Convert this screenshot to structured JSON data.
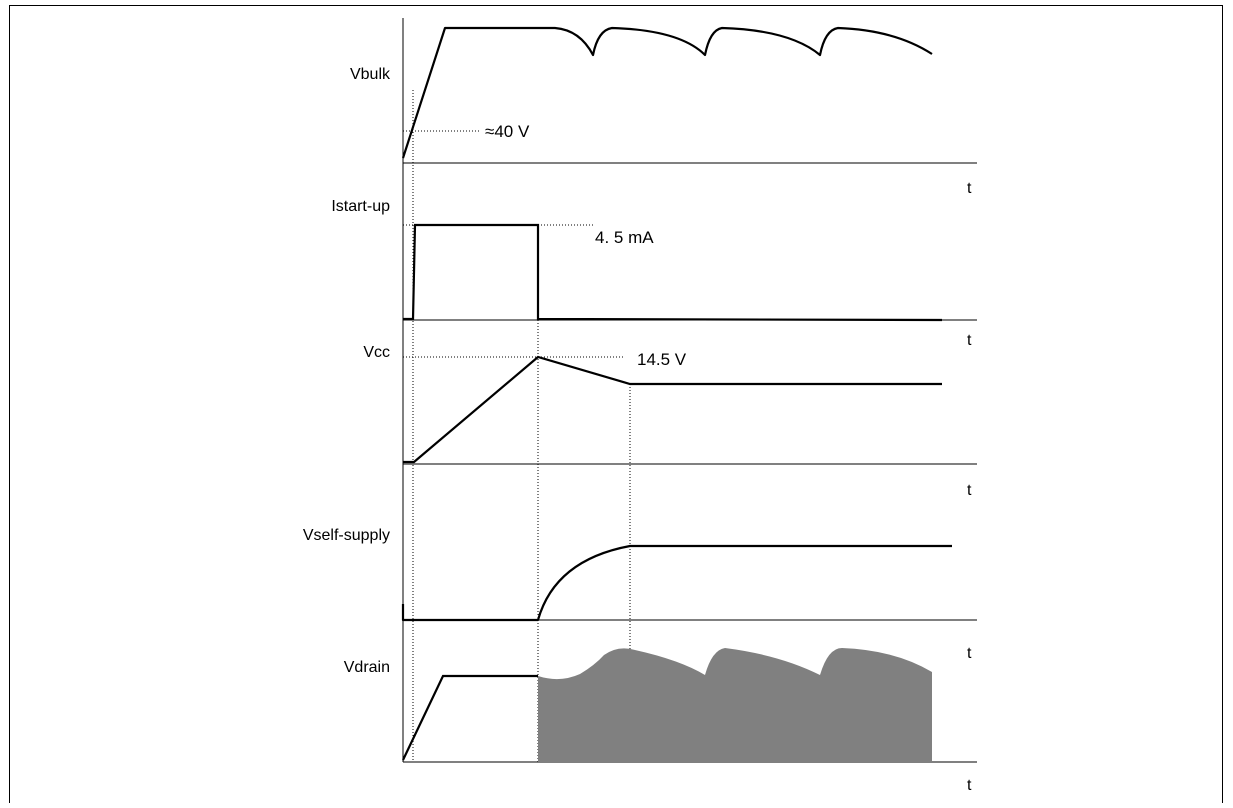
{
  "colors": {
    "line": "#000000",
    "fill_region": "#808080",
    "background": "#ffffff"
  },
  "traces": [
    {
      "id": "vbulk",
      "label": "Vbulk",
      "axis_label": "t",
      "annotation": "≈40 V"
    },
    {
      "id": "istartup",
      "label": "Istart-up",
      "axis_label": "t",
      "annotation": "4. 5 mA"
    },
    {
      "id": "vcc",
      "label": "Vcc",
      "axis_label": "t",
      "annotation": "14.5 V"
    },
    {
      "id": "vselfsupply",
      "label": "Vself-supply",
      "axis_label": "t",
      "annotation": ""
    },
    {
      "id": "vdrain",
      "label": "Vdrain",
      "axis_label": "t",
      "annotation": ""
    }
  ]
}
